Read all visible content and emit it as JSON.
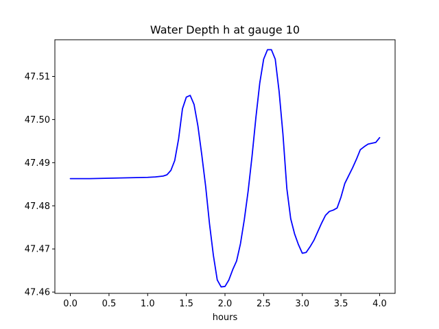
{
  "chart_data": {
    "type": "line",
    "title": "Water Depth h at gauge 10",
    "xlabel": "hours",
    "ylabel": "",
    "xlim": [
      -0.2,
      4.2
    ],
    "ylim": [
      47.4597,
      47.5185
    ],
    "x_ticks": [
      0.0,
      0.5,
      1.0,
      1.5,
      2.0,
      2.5,
      3.0,
      3.5,
      4.0
    ],
    "x_tick_labels": [
      "0.0",
      "0.5",
      "1.0",
      "1.5",
      "2.0",
      "2.5",
      "3.0",
      "3.5",
      "4.0"
    ],
    "y_ticks": [
      47.46,
      47.47,
      47.48,
      47.49,
      47.5,
      47.51
    ],
    "y_tick_labels": [
      "47.46",
      "47.47",
      "47.48",
      "47.49",
      "47.50",
      "47.51"
    ],
    "grid": false,
    "legend": "none",
    "series": [
      {
        "color": "#0000ff",
        "x": [
          0.0,
          0.25,
          0.5,
          0.75,
          1.0,
          1.1,
          1.2,
          1.25,
          1.3,
          1.35,
          1.4,
          1.45,
          1.5,
          1.55,
          1.6,
          1.65,
          1.7,
          1.75,
          1.8,
          1.85,
          1.9,
          1.95,
          2.0,
          2.05,
          2.1,
          2.15,
          2.2,
          2.25,
          2.3,
          2.35,
          2.4,
          2.45,
          2.5,
          2.55,
          2.6,
          2.65,
          2.7,
          2.75,
          2.8,
          2.85,
          2.9,
          2.95,
          3.0,
          3.05,
          3.1,
          3.15,
          3.2,
          3.25,
          3.3,
          3.35,
          3.4,
          3.45,
          3.5,
          3.55,
          3.6,
          3.65,
          3.7,
          3.75,
          3.8,
          3.85,
          3.9,
          3.95,
          4.0
        ],
        "y": [
          47.4863,
          47.4863,
          47.4864,
          47.4865,
          47.4866,
          47.4867,
          47.4869,
          47.4872,
          47.4882,
          47.4905,
          47.4955,
          47.5025,
          47.5052,
          47.5056,
          47.5035,
          47.4985,
          47.4918,
          47.4845,
          47.4758,
          47.4685,
          47.4628,
          47.4612,
          47.4613,
          47.4628,
          47.4652,
          47.4672,
          47.4712,
          47.4768,
          47.4835,
          47.4915,
          47.5005,
          47.5085,
          47.514,
          47.5162,
          47.5162,
          47.514,
          47.5065,
          47.4965,
          47.484,
          47.477,
          47.4735,
          47.471,
          47.469,
          47.4692,
          47.4705,
          47.472,
          47.474,
          47.476,
          47.4778,
          47.4787,
          47.479,
          47.4795,
          47.482,
          47.4852,
          47.487,
          47.4888,
          47.4908,
          47.493,
          47.4937,
          47.4943,
          47.4945,
          47.4947,
          47.4958
        ]
      }
    ]
  }
}
